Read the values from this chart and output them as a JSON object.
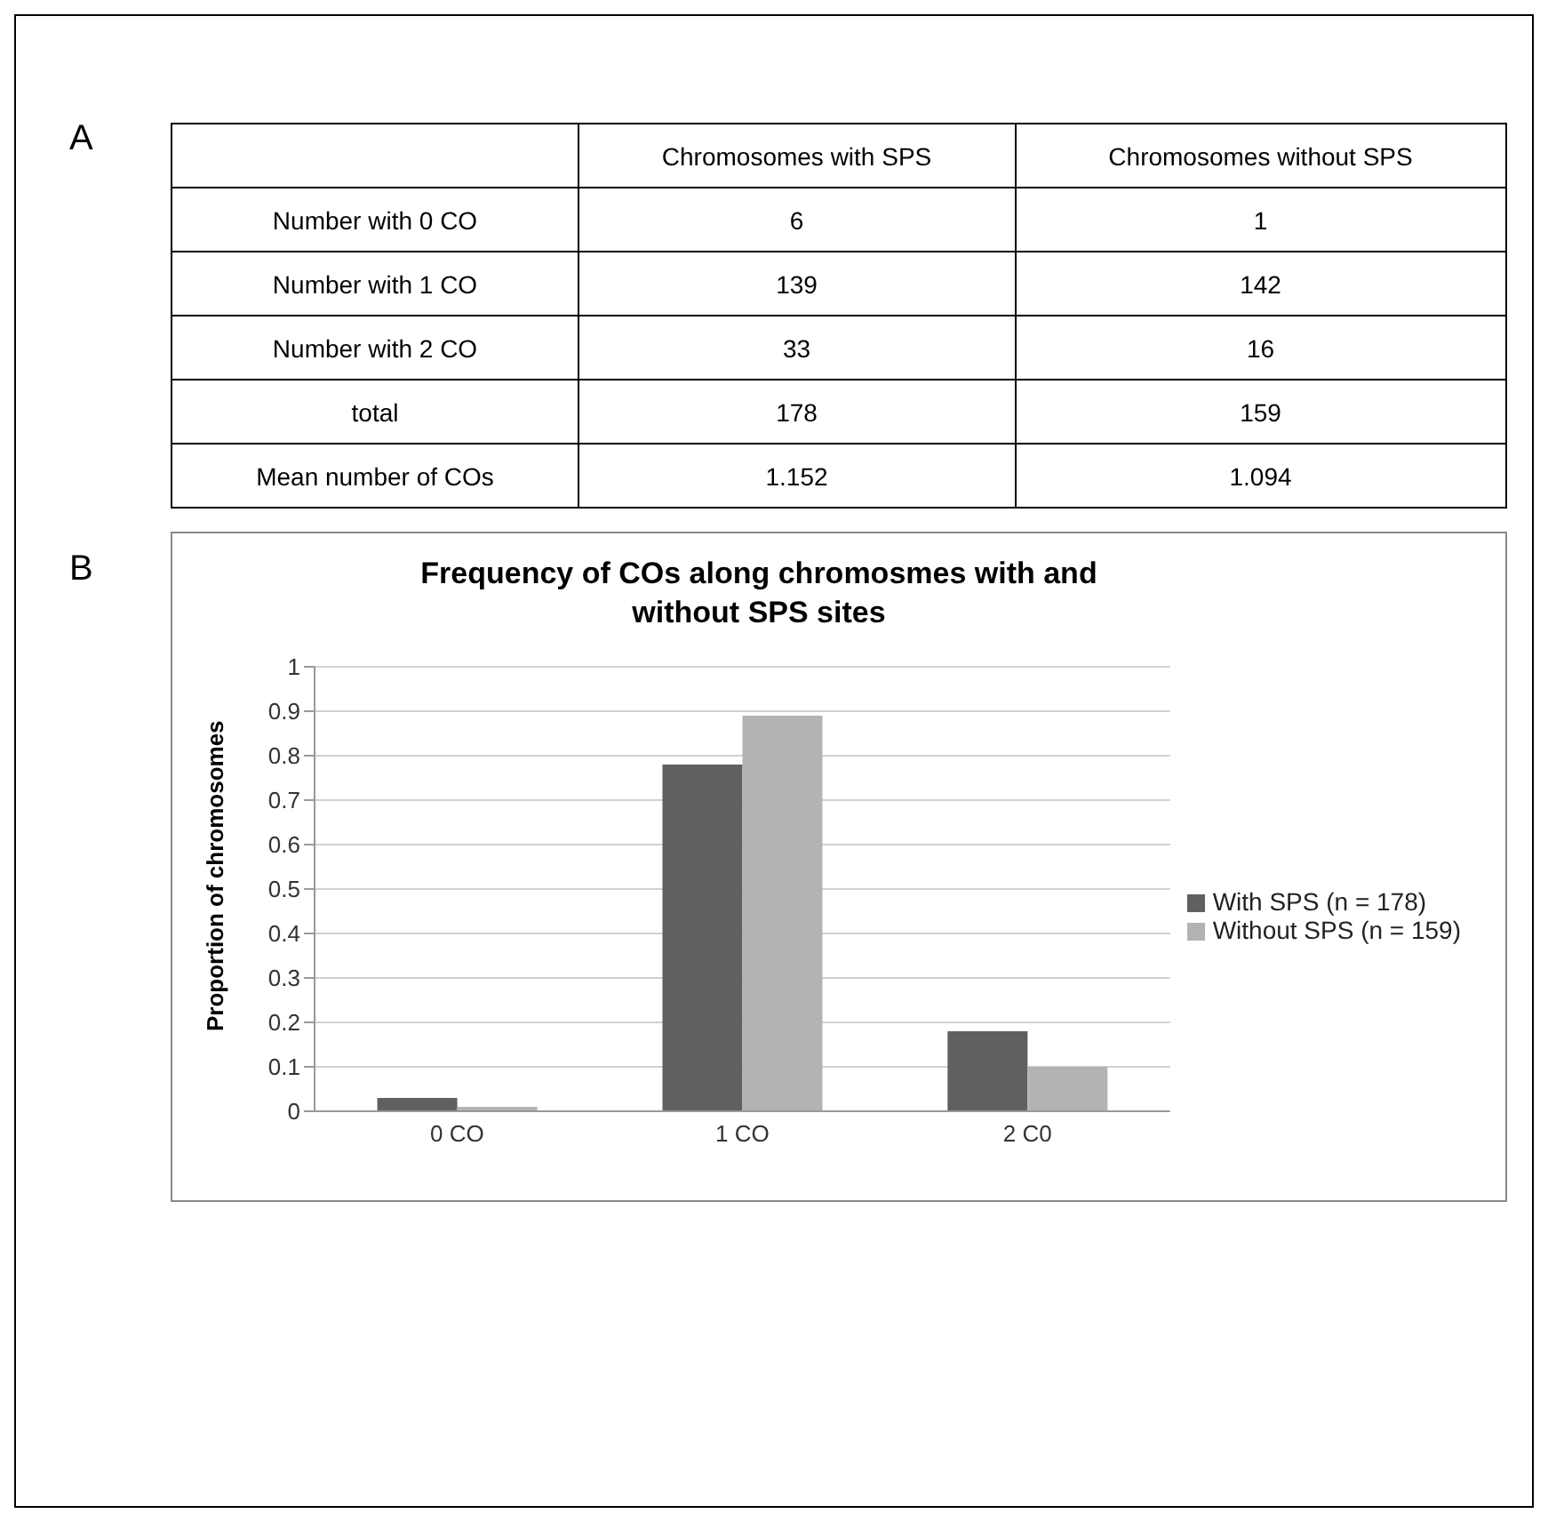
{
  "chart_data": [
    {
      "type": "heatmap",
      "annotations": [
        "A"
      ],
      "categories": [
        "Chromosomes with SPS",
        "Chromosomes without SPS"
      ],
      "y_categories": [
        "Number with 0 CO",
        "Number with 1 CO",
        "Number with 2 CO",
        "total",
        "Mean number of COs"
      ],
      "data_labels": true,
      "cells": [
        [
          6,
          1
        ],
        [
          139,
          142
        ],
        [
          33,
          16
        ],
        [
          178,
          159
        ],
        [
          1.152,
          1.094
        ]
      ]
    },
    {
      "type": "bar",
      "annotations": [
        "B"
      ],
      "title": "Frequency of COs along chromosmes with and without SPS sites",
      "ylabel": "Proportion of chromosomes",
      "categories": [
        "0 CO",
        "1 CO",
        "2 C0"
      ],
      "series": [
        {
          "name": "With SPS (n = 178)",
          "color": "#606060",
          "values": [
            0.03,
            0.78,
            0.18
          ]
        },
        {
          "name": "Without SPS (n = 159)",
          "color": "#b3b3b3",
          "values": [
            0.01,
            0.89,
            0.1
          ]
        }
      ],
      "ylim": [
        0,
        1
      ],
      "yticks": [
        0,
        0.1,
        0.2,
        0.3,
        0.4,
        0.5,
        0.6,
        0.7,
        0.8,
        0.9,
        1
      ],
      "grid": "y",
      "legend": "right"
    }
  ]
}
